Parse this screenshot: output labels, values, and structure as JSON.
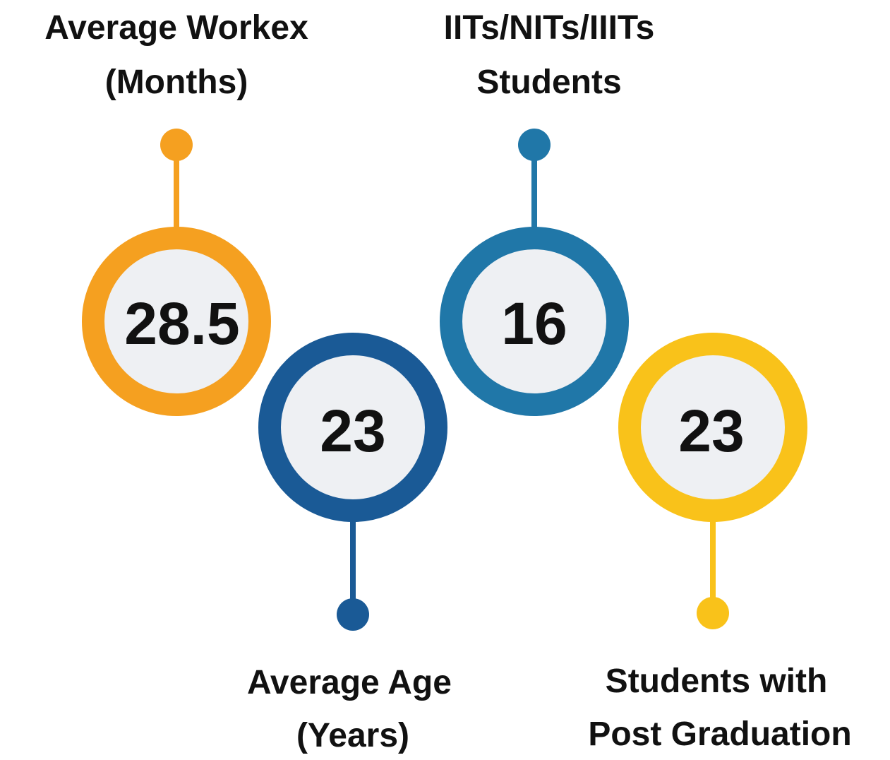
{
  "items": [
    {
      "label": [
        "Average Workex",
        "(Months)"
      ],
      "value": 28.5
    },
    {
      "label": [
        "Average Age",
        "(Years)"
      ],
      "value": 23
    },
    {
      "label": [
        "IITs/NITs/IIITs",
        "Students"
      ],
      "value": 16
    },
    {
      "label": [
        "Students with",
        "Post Graduation"
      ],
      "value": 23
    }
  ]
}
